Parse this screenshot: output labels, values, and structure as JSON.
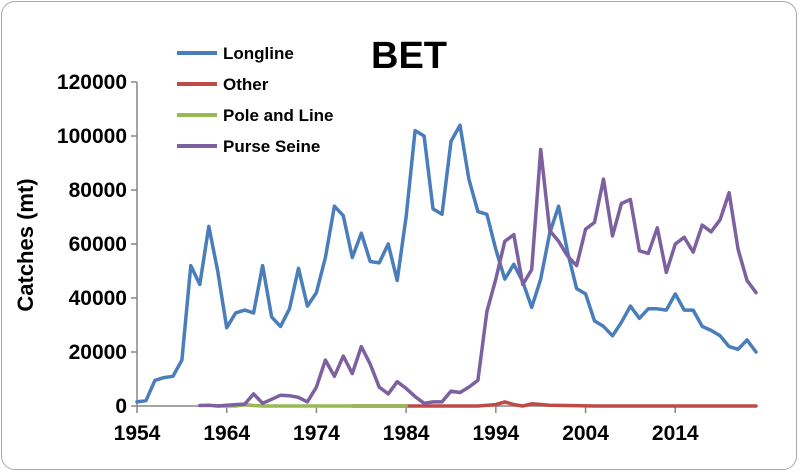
{
  "chart_data": {
    "type": "line",
    "title": "BET",
    "xlabel": "",
    "ylabel": "Catches (mt)",
    "xlim": [
      1954,
      2023
    ],
    "ylim": [
      0,
      120000
    ],
    "x_ticks": [
      1954,
      1964,
      1974,
      1984,
      1994,
      2004,
      2014
    ],
    "y_ticks": [
      0,
      20000,
      40000,
      60000,
      80000,
      100000,
      120000
    ],
    "y_tick_labels": [
      "0",
      "20000",
      "40000",
      "60000",
      "80000",
      "100000",
      "120000"
    ],
    "grid": false,
    "legend_position": "top-left",
    "series": [
      {
        "name": "Longline",
        "color": "#4a7ebb",
        "x": [
          1954,
          1955,
          1956,
          1957,
          1958,
          1959,
          1960,
          1961,
          1962,
          1963,
          1964,
          1965,
          1966,
          1967,
          1968,
          1969,
          1970,
          1971,
          1972,
          1973,
          1974,
          1975,
          1976,
          1977,
          1978,
          1979,
          1980,
          1981,
          1982,
          1983,
          1984,
          1985,
          1986,
          1987,
          1988,
          1989,
          1990,
          1991,
          1992,
          1993,
          1994,
          1995,
          1996,
          1997,
          1998,
          1999,
          2000,
          2001,
          2002,
          2003,
          2004,
          2005,
          2006,
          2007,
          2008,
          2009,
          2010,
          2011,
          2012,
          2013,
          2014,
          2015,
          2016,
          2017,
          2018,
          2019,
          2020,
          2021,
          2022,
          2023
        ],
        "y": [
          1500,
          2000,
          9500,
          10500,
          11000,
          17000,
          52000,
          45000,
          66500,
          50000,
          29000,
          34500,
          35500,
          34500,
          52000,
          33000,
          29500,
          36000,
          51000,
          37000,
          42000,
          55000,
          74000,
          70500,
          55000,
          64000,
          53500,
          53000,
          60000,
          46500,
          70000,
          102000,
          100000,
          73000,
          71000,
          98000,
          104000,
          84000,
          72000,
          71000,
          58000,
          47000,
          52500,
          46000,
          36500,
          47000,
          64000,
          74000,
          57000,
          43500,
          41500,
          31500,
          29500,
          26000,
          31000,
          37000,
          32500,
          36000,
          36000,
          35500,
          41500,
          35500,
          35500,
          29500,
          28000,
          26000,
          22000,
          21000,
          24500,
          20000
        ]
      },
      {
        "name": "Other",
        "color": "#be4b48",
        "x": [
          1978,
          1984,
          1988,
          1990,
          1992,
          1994,
          1995,
          1996,
          1997,
          1998,
          2000,
          2002,
          2005,
          2010,
          2012,
          2015,
          2020,
          2023
        ],
        "y": [
          0,
          0,
          0,
          0,
          0,
          500,
          1500,
          500,
          0,
          800,
          300,
          200,
          0,
          0,
          0,
          0,
          0,
          0
        ]
      },
      {
        "name": "Pole and Line",
        "color": "#98b954",
        "x": [
          1963,
          1964,
          1965,
          1966,
          1967,
          1968,
          1971,
          1972,
          1973,
          1974,
          1975,
          1976,
          1977,
          1981,
          1982,
          1983,
          1984
        ],
        "y": [
          0,
          0,
          0,
          500,
          200,
          0,
          0,
          0,
          0,
          0,
          0,
          0,
          0,
          0,
          0,
          0,
          0
        ]
      },
      {
        "name": "Purse Seine",
        "color": "#7d60a0",
        "x": [
          1961,
          1962,
          1963,
          1964,
          1965,
          1966,
          1967,
          1968,
          1969,
          1970,
          1971,
          1972,
          1973,
          1974,
          1975,
          1976,
          1977,
          1978,
          1979,
          1980,
          1981,
          1982,
          1983,
          1984,
          1985,
          1986,
          1987,
          1988,
          1989,
          1990,
          1991,
          1992,
          1993,
          1994,
          1995,
          1996,
          1997,
          1998,
          1999,
          2000,
          2001,
          2002,
          2003,
          2004,
          2005,
          2006,
          2007,
          2008,
          2009,
          2010,
          2011,
          2012,
          2013,
          2014,
          2015,
          2016,
          2017,
          2018,
          2019,
          2020,
          2021,
          2022,
          2023
        ],
        "y": [
          200,
          300,
          0,
          300,
          500,
          700,
          4500,
          1000,
          2500,
          4000,
          3800,
          3200,
          1500,
          7000,
          17000,
          11000,
          18500,
          12000,
          22000,
          15500,
          7000,
          4500,
          9000,
          6500,
          3500,
          1000,
          1500,
          1500,
          5500,
          5000,
          7000,
          9500,
          35000,
          47000,
          61000,
          63500,
          45000,
          50500,
          95000,
          65000,
          61000,
          55500,
          52000,
          65500,
          68000,
          84000,
          63000,
          75000,
          76500,
          57500,
          56500,
          66000,
          49500,
          60000,
          62500,
          57000,
          67000,
          64500,
          69000,
          79000,
          58000,
          46500,
          42000
        ]
      }
    ]
  }
}
